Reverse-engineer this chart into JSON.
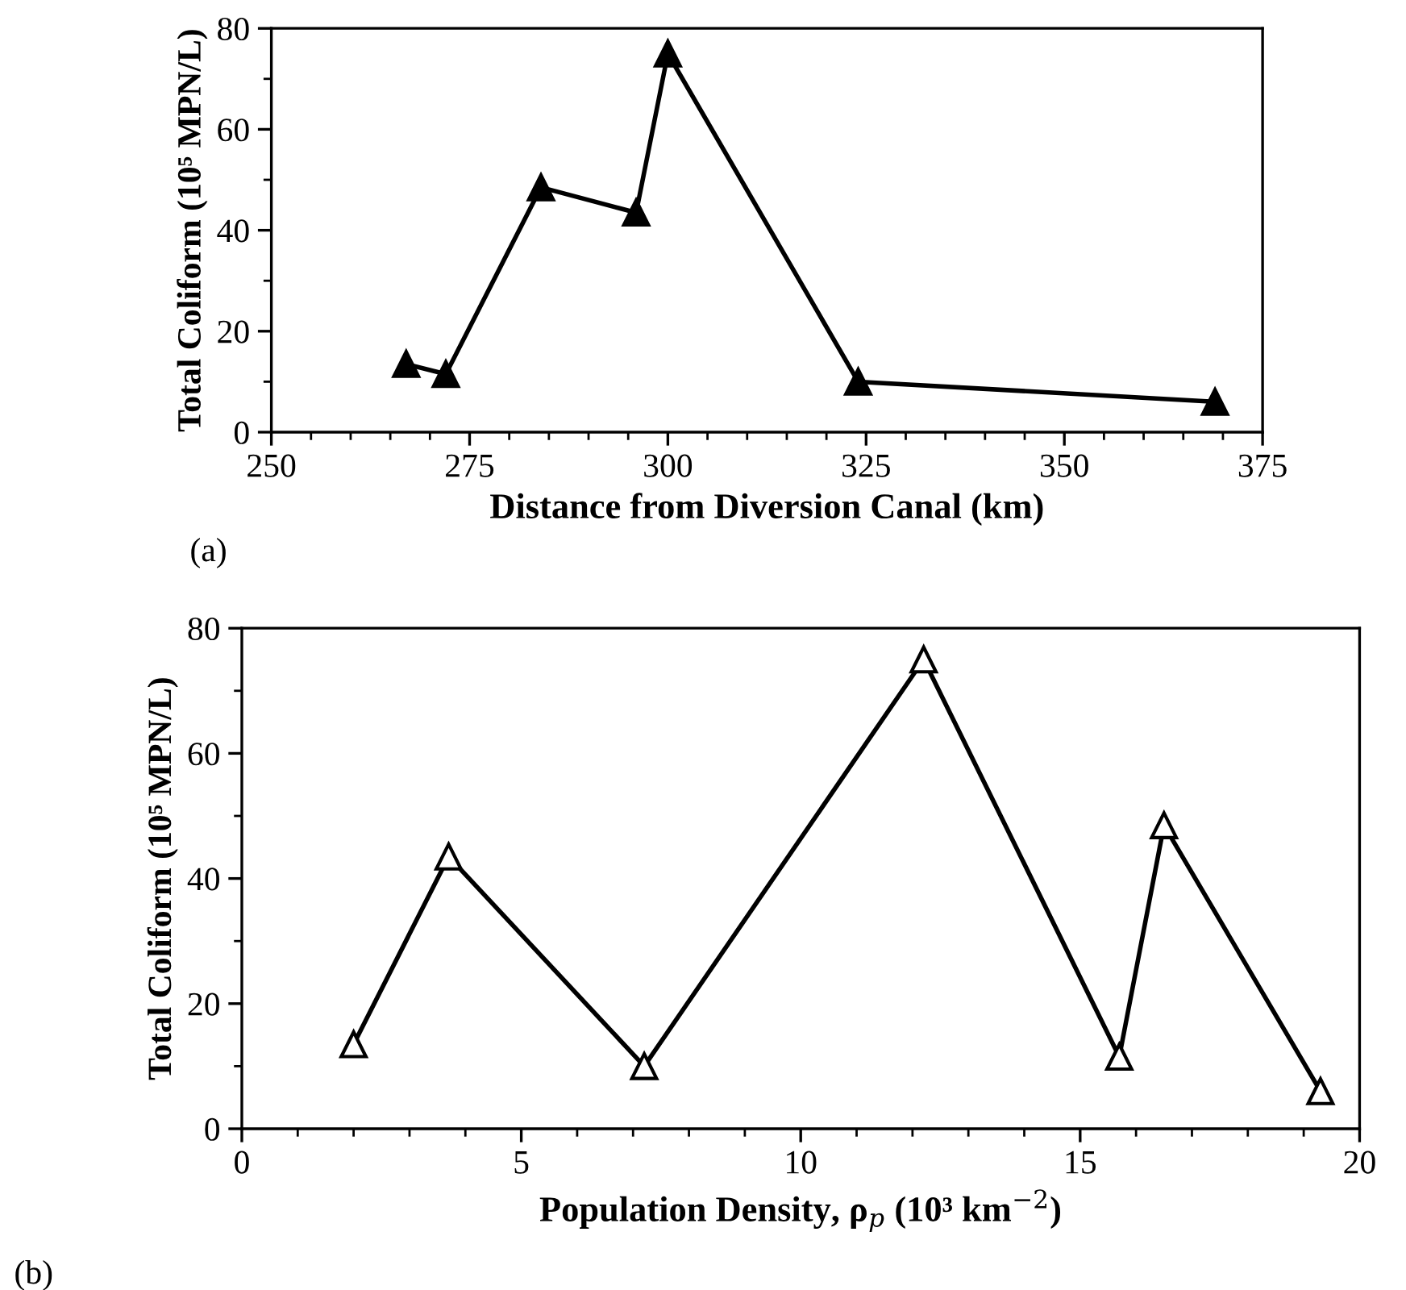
{
  "chart_data": [
    {
      "type": "line",
      "xlabel": "Distance from Diversion Canal (km)",
      "ylabel": "Total Coliform (10⁵ MPN/L)",
      "annotations": [
        "(a)"
      ],
      "x": [
        267,
        272,
        284,
        296,
        300,
        324,
        369
      ],
      "series": [
        {
          "color": "#000000",
          "values": [
            13.5,
            11.5,
            48.5,
            43.5,
            75,
            10,
            6
          ]
        }
      ],
      "xlim": [
        250,
        375
      ],
      "xticks": [
        250,
        275,
        300,
        325,
        350,
        375
      ],
      "ylim": [
        0,
        80
      ],
      "yticks": [
        0,
        20,
        40,
        60,
        80
      ],
      "marker": "triangle",
      "line_style": "solid",
      "grid": false,
      "legend": false
    },
    {
      "type": "line",
      "xlabel": "Population Density, ρ$_{p}$ (10³ km$^{−2}$)",
      "ylabel": "Total Coliform (10⁵ MPN/L)",
      "annotations": [
        "(b)"
      ],
      "x": [
        2,
        3.7,
        7.2,
        12.2,
        15.7,
        16.5,
        19.3
      ],
      "series": [
        {
          "color": "#000000",
          "values": [
            13.5,
            43.5,
            10,
            75,
            11.5,
            48.5,
            6
          ]
        }
      ],
      "xlim": [
        0,
        20
      ],
      "xticks": [
        0,
        5,
        10,
        15,
        20
      ],
      "ylim": [
        0,
        80
      ],
      "yticks": [
        0,
        20,
        40,
        60,
        80
      ],
      "marker": "triangle",
      "line_style": "solid",
      "grid": false,
      "legend": false
    }
  ]
}
